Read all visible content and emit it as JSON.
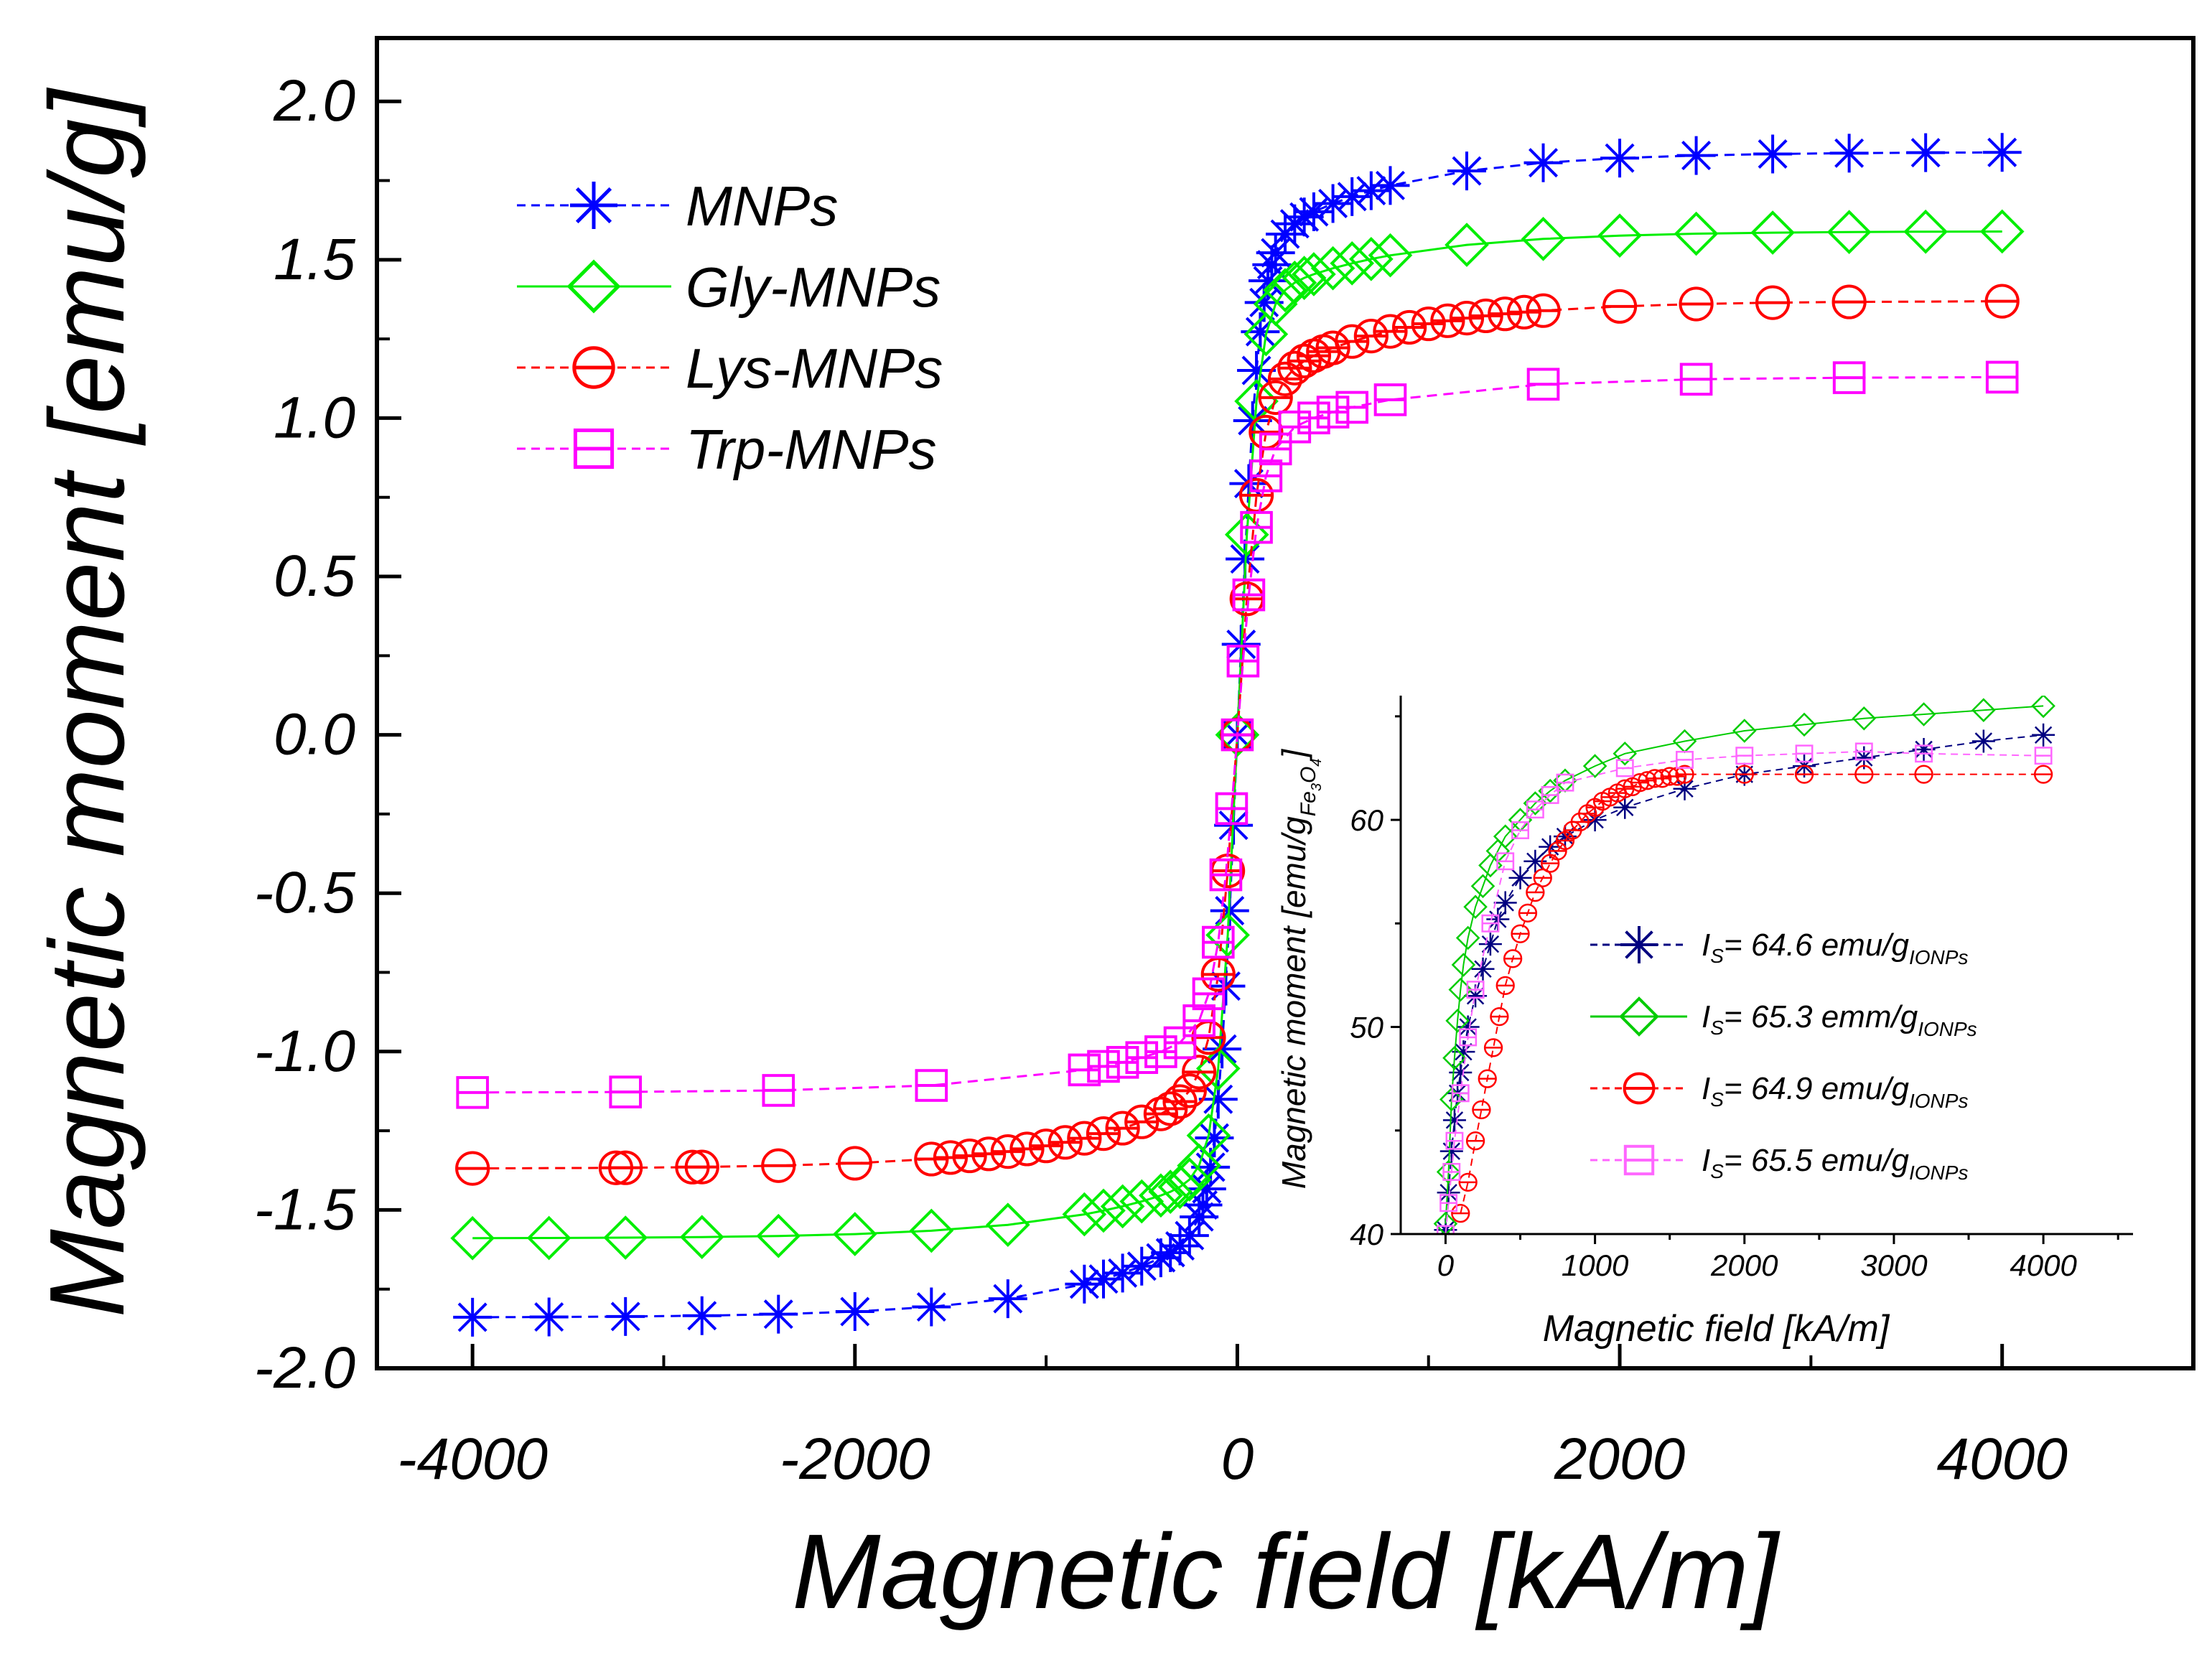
{
  "chart_data": [
    {
      "type": "scatter",
      "role": "main",
      "xlabel": "Magnetic field [kA/m]",
      "ylabel": "Magnetic moment [emu/g]",
      "xlim": [
        -4500,
        5000
      ],
      "ylim": [
        -2.0,
        2.2
      ],
      "xticks": [
        -4000,
        -2000,
        0,
        2000,
        4000
      ],
      "xtick_labels": [
        "-4000",
        "-2000",
        "0",
        "2000",
        "4000"
      ],
      "yticks": [
        -2.0,
        -1.5,
        -1.0,
        -0.5,
        0.0,
        0.5,
        1.0,
        1.5,
        2.0
      ],
      "ytick_labels": [
        "-2.0",
        "-1.5",
        "-1.0",
        "-0.5",
        "0.0",
        "0.5",
        "1.0",
        "1.5",
        "2.0"
      ],
      "legend_position": "top-left",
      "series": [
        {
          "name": "MNPs",
          "color": "#0000ff",
          "marker": "asterisk",
          "dash": "dash",
          "Ms": 1.84,
          "Hs": 105,
          "steep": 0.18,
          "x": [
            -4000,
            -3600,
            -3200,
            -2800,
            -2400,
            -2000,
            -1600,
            -1200,
            -800,
            -700,
            -600,
            -500,
            -400,
            -350,
            -300,
            -250,
            -200,
            -180,
            -160,
            -140,
            -120,
            -100,
            -80,
            -60,
            -40,
            -20,
            0,
            20,
            40,
            60,
            80,
            100,
            120,
            140,
            160,
            180,
            200,
            250,
            300,
            350,
            400,
            500,
            600,
            700,
            800,
            1200,
            1600,
            2000,
            2400,
            2800,
            3200,
            3600,
            4000
          ]
        },
        {
          "name": "Gly-MNPs",
          "color": "#00ee00",
          "marker": "diamond",
          "dash": "solid",
          "Ms": 1.59,
          "Hs": 100,
          "steep": 0.15,
          "x": [
            -4000,
            -3600,
            -3200,
            -2800,
            -2400,
            -2000,
            -1600,
            -1200,
            -800,
            -700,
            -600,
            -500,
            -400,
            -350,
            -300,
            -250,
            -200,
            -150,
            -100,
            -50,
            0,
            50,
            100,
            150,
            200,
            250,
            300,
            350,
            400,
            500,
            600,
            700,
            800,
            1200,
            1600,
            2000,
            2400,
            2800,
            3200,
            3600,
            4000
          ]
        },
        {
          "name": "Lys-MNPs",
          "color": "#ff0000",
          "marker": "circle-line",
          "dash": "dash",
          "Ms": 1.37,
          "Hs": 120,
          "steep": 0.22,
          "x": [
            -4000,
            -3250,
            -3200,
            -2850,
            -2800,
            -2400,
            -2000,
            -1600,
            -1500,
            -1400,
            -1300,
            -1200,
            -1100,
            -1000,
            -900,
            -800,
            -700,
            -600,
            -500,
            -400,
            -350,
            -300,
            -250,
            -200,
            -150,
            -100,
            -50,
            0,
            50,
            100,
            150,
            200,
            250,
            300,
            350,
            400,
            450,
            500,
            600,
            700,
            800,
            900,
            1000,
            1100,
            1200,
            1300,
            1400,
            1500,
            1600,
            2000,
            2400,
            2800,
            3200,
            4000
          ]
        },
        {
          "name": "Trp-MNPs",
          "color": "#ff00ff",
          "marker": "square-line",
          "dash": "dash",
          "Ms": 1.13,
          "Hs": 115,
          "steep": 0.2,
          "x": [
            -4000,
            -3200,
            -2400,
            -1600,
            -800,
            -700,
            -600,
            -500,
            -400,
            -300,
            -200,
            -150,
            -100,
            -60,
            -30,
            0,
            30,
            60,
            100,
            150,
            200,
            300,
            400,
            500,
            600,
            800,
            1600,
            2400,
            3200,
            4000
          ]
        }
      ]
    },
    {
      "type": "scatter",
      "role": "inset",
      "xlabel": "Magnetic field [kA/m]",
      "ylabel_prefix": "Magnetic moment [emu/g",
      "ylabel_sub": "Fe",
      "ylabel_sub2": "3",
      "ylabel_mid": "O",
      "ylabel_sub3": "4",
      "ylabel_suffix": "]",
      "xlim": [
        -300,
        4600
      ],
      "ylim": [
        40,
        66
      ],
      "xticks": [
        0,
        1000,
        2000,
        3000,
        4000
      ],
      "xtick_labels": [
        "0",
        "1000",
        "2000",
        "3000",
        "4000"
      ],
      "yticks": [
        40,
        50,
        60
      ],
      "ytick_labels": [
        "40",
        "50",
        "60"
      ],
      "legend_position": "bottom-right",
      "legend": [
        {
          "pre": "I",
          "sub": "S",
          "text": "= 64.6 emu/g",
          "sub2": "IONPs"
        },
        {
          "pre": "I",
          "sub": "S",
          "text": "= 65.3 emm/g",
          "sub2": "IONPs"
        },
        {
          "pre": "I",
          "sub": "S",
          "text": "= 64.9 emu/g",
          "sub2": "IONPs"
        },
        {
          "pre": "I",
          "sub": "S",
          "text": "= 65.5 emu/g",
          "sub2": "IONPs"
        }
      ],
      "series": [
        {
          "name": "MNPs",
          "color": "#000080",
          "marker": "asterisk",
          "x": [
            0,
            20,
            40,
            60,
            80,
            100,
            120,
            150,
            200,
            250,
            300,
            350,
            400,
            500,
            600,
            700,
            800,
            1000,
            1200,
            1600,
            2000,
            2400,
            2800,
            3200,
            3600,
            4000
          ],
          "y": [
            40.2,
            42.0,
            44.0,
            45.5,
            46.8,
            47.8,
            48.8,
            50.0,
            51.5,
            52.8,
            54.0,
            55.2,
            56.0,
            57.2,
            58.0,
            58.7,
            59.2,
            60.0,
            60.6,
            61.5,
            62.2,
            62.6,
            63.0,
            63.4,
            63.8,
            64.1
          ]
        },
        {
          "name": "Gly-MNPs",
          "color": "#00cc00",
          "marker": "diamond",
          "x": [
            0,
            20,
            40,
            60,
            80,
            100,
            120,
            150,
            200,
            250,
            300,
            350,
            400,
            500,
            600,
            700,
            800,
            1000,
            1200,
            1600,
            2000,
            2400,
            2800,
            3200,
            3600,
            4000
          ],
          "y": [
            40.5,
            43.0,
            46.5,
            48.5,
            50.3,
            51.8,
            53.0,
            54.3,
            55.8,
            56.8,
            57.8,
            58.5,
            59.2,
            60.0,
            60.8,
            61.4,
            61.9,
            62.6,
            63.2,
            63.8,
            64.3,
            64.6,
            64.9,
            65.1,
            65.3,
            65.5
          ]
        },
        {
          "name": "Lys-MNPs",
          "color": "#ff0000",
          "marker": "circle-line",
          "x": [
            100,
            150,
            200,
            240,
            280,
            320,
            360,
            400,
            450,
            500,
            550,
            600,
            650,
            700,
            750,
            800,
            850,
            900,
            950,
            1000,
            1050,
            1100,
            1150,
            1200,
            1250,
            1300,
            1350,
            1400,
            1450,
            1500,
            1550,
            1600,
            2000,
            2400,
            2800,
            3200,
            4000
          ],
          "y": [
            41.0,
            42.5,
            44.5,
            46.0,
            47.5,
            49.0,
            50.5,
            52.0,
            53.3,
            54.5,
            55.5,
            56.5,
            57.2,
            57.9,
            58.5,
            59.0,
            59.5,
            59.9,
            60.3,
            60.6,
            60.9,
            61.1,
            61.3,
            61.5,
            61.6,
            61.8,
            61.9,
            62.0,
            62.0,
            62.1,
            62.1,
            62.2,
            62.2,
            62.2,
            62.2,
            62.2,
            62.2
          ]
        },
        {
          "name": "Trp-MNPs",
          "color": "#ff66ff",
          "marker": "square-line",
          "x": [
            0,
            20,
            40,
            60,
            100,
            150,
            200,
            300,
            400,
            500,
            600,
            700,
            800,
            1200,
            1600,
            2000,
            2400,
            2800,
            3200,
            4000
          ],
          "y": [
            40.0,
            41.5,
            43.0,
            44.5,
            46.8,
            49.5,
            51.8,
            55.0,
            58.0,
            59.5,
            60.5,
            61.2,
            61.8,
            62.5,
            62.9,
            63.1,
            63.2,
            63.3,
            63.2,
            63.1
          ]
        }
      ]
    }
  ]
}
